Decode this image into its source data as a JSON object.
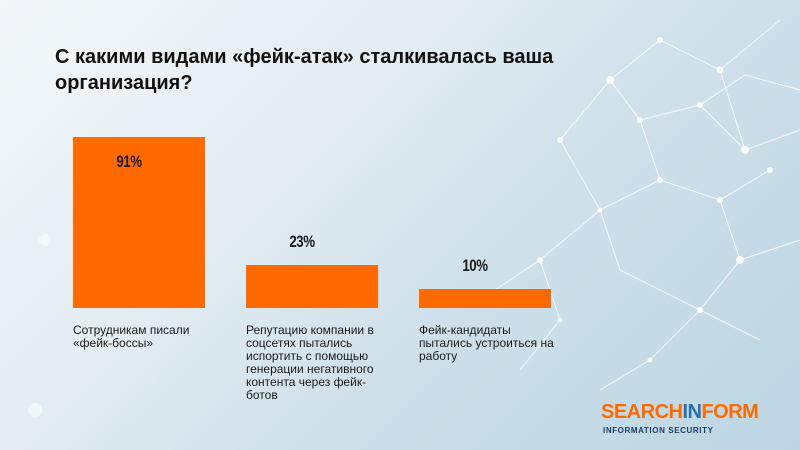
{
  "title": "С какими видами «фейк-атак» сталкивалась ваша организация?",
  "chart_data": {
    "type": "bar",
    "categories": [
      "Сотрудникам писали «фейк-боссы»",
      "Репутацию компании в соцсетях пытались испортить с помощью генерации негативного контента через фейк-ботов",
      "Фейк-кандидаты пытались устроиться на работу"
    ],
    "values": [
      91,
      23,
      10
    ],
    "value_labels": [
      "91%",
      "23%",
      "10%"
    ],
    "ylim": [
      0,
      100
    ],
    "bar_color": "#ff6a00",
    "grid": false,
    "legend": "none"
  },
  "logo": {
    "part1": "SEARCH",
    "part2": "IN",
    "part3": "FORM",
    "subtitle": "INFORMATION SECURITY",
    "colors": {
      "orange": "#ff6a00",
      "blue": "#2a6fb4"
    }
  }
}
